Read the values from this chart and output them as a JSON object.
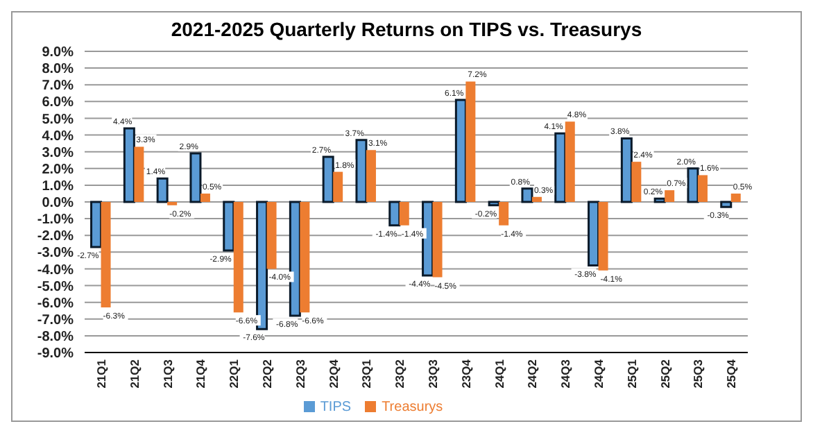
{
  "chart_data": {
    "type": "bar",
    "title": "2021-2025 Quarterly Returns on TIPS vs. Treasurys",
    "categories": [
      "21Q1",
      "21Q2",
      "21Q3",
      "21Q4",
      "22Q1",
      "22Q2",
      "22Q3",
      "22Q4",
      "23Q1",
      "23Q2",
      "23Q3",
      "23Q4",
      "24Q1",
      "24Q2",
      "24Q3",
      "24Q4",
      "25Q1",
      "25Q2",
      "25Q3",
      "25Q4"
    ],
    "series": [
      {
        "name": "TIPS",
        "color": "#5b9bd5",
        "values": [
          -2.7,
          4.4,
          1.4,
          2.9,
          -2.9,
          -7.6,
          -6.8,
          2.7,
          3.7,
          -1.4,
          -4.4,
          6.1,
          -0.2,
          0.8,
          4.1,
          -3.8,
          3.8,
          0.2,
          2.0,
          -0.3
        ],
        "value_labels": [
          "-2.7%",
          "4.4%",
          "1.4%",
          "2.9%",
          "-2.9%",
          "-7.6%",
          "-6.8%",
          "2.7%",
          "3.7%",
          "-1.4%",
          "-4.4%",
          "6.1%",
          "-0.2%",
          "0.8%",
          "4.1%",
          "-3.8%",
          "3.8%",
          "0.2%",
          "2.0%",
          "-0.3%"
        ]
      },
      {
        "name": "Treasurys",
        "color": "#ed7d31",
        "values": [
          -6.3,
          3.3,
          -0.2,
          0.5,
          -6.6,
          -4.0,
          -6.6,
          1.8,
          3.1,
          -1.4,
          -4.5,
          7.2,
          -1.4,
          0.3,
          4.8,
          -4.1,
          2.4,
          0.7,
          1.6,
          0.5
        ],
        "value_labels": [
          "-6.3%",
          "3.3%",
          "-0.2%",
          "0.5%",
          "-6.6%",
          "-4.0%",
          "-6.6%",
          "1.8%",
          "3.1%",
          "-1.4%",
          "-4.5%",
          "7.2%",
          "-1.4%",
          "0.3%",
          "4.8%",
          "-4.1%",
          "2.4%",
          "0.7%",
          "1.6%",
          "0.5%"
        ]
      }
    ],
    "ylim": [
      -9,
      9
    ],
    "yticks": [
      {
        "value": -9,
        "label": "-9.0%"
      },
      {
        "value": -8,
        "label": "-8.0%"
      },
      {
        "value": -7,
        "label": "-7.0%"
      },
      {
        "value": -6,
        "label": "-6.0%"
      },
      {
        "value": -5,
        "label": "-5.0%"
      },
      {
        "value": -4,
        "label": "-4.0%"
      },
      {
        "value": -3,
        "label": "-3.0%"
      },
      {
        "value": -2,
        "label": "-2.0%"
      },
      {
        "value": -1,
        "label": "-1.0%"
      },
      {
        "value": 0,
        "label": "0.0%"
      },
      {
        "value": 1,
        "label": "1.0%"
      },
      {
        "value": 2,
        "label": "2.0%"
      },
      {
        "value": 3,
        "label": "3.0%"
      },
      {
        "value": 4,
        "label": "4.0%"
      },
      {
        "value": 5,
        "label": "5.0%"
      },
      {
        "value": 6,
        "label": "6.0%"
      },
      {
        "value": 7,
        "label": "7.0%"
      },
      {
        "value": 8,
        "label": "8.0%"
      },
      {
        "value": 9,
        "label": "9.0%"
      }
    ],
    "grid": "y",
    "legend": "bottom"
  }
}
